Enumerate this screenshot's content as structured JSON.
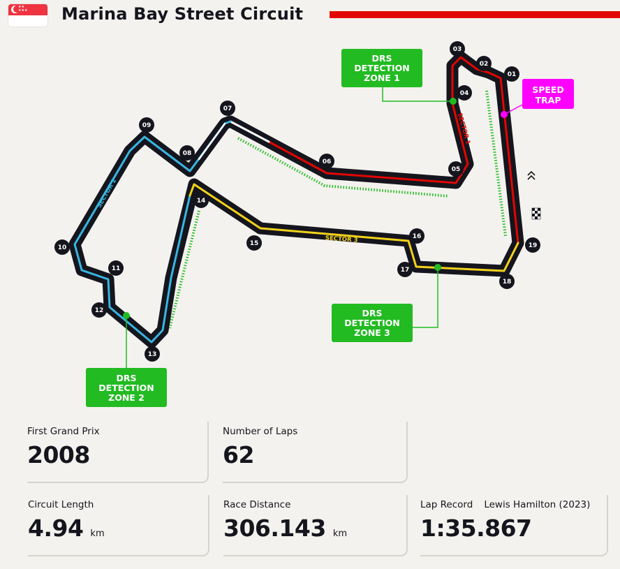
{
  "header": {
    "title": "Marina Bay Street Circuit",
    "flag_icon": "singapore-flag-icon",
    "accent_color": "#e10600"
  },
  "map": {
    "corners": [
      "01",
      "02",
      "03",
      "04",
      "05",
      "06",
      "07",
      "08",
      "09",
      "10",
      "11",
      "12",
      "13",
      "14",
      "15",
      "16",
      "17",
      "18",
      "19"
    ],
    "sectors": [
      {
        "name": "SECTOR 1",
        "color": "#e10600"
      },
      {
        "name": "SECTOR 2",
        "color": "#39b5e0"
      },
      {
        "name": "SECTOR 3",
        "color": "#f2d21b"
      }
    ],
    "drs_zones": [
      {
        "label_lines": [
          "DRS",
          "DETECTION",
          "ZONE 1"
        ]
      },
      {
        "label_lines": [
          "DRS",
          "DETECTION",
          "ZONE 2"
        ]
      },
      {
        "label_lines": [
          "DRS",
          "DETECTION",
          "ZONE 3"
        ]
      }
    ],
    "drs_color": "#22bb22",
    "speed_trap": {
      "label_lines": [
        "SPEED",
        "TRAP"
      ],
      "color": "#ff00ff"
    },
    "track_color": "#15151e",
    "start_finish_icon": "chequered-flag-icon",
    "direction_icon": "double-chevron-up-icon"
  },
  "stats": {
    "first_gp": {
      "label": "First Grand Prix",
      "value": "2008"
    },
    "laps": {
      "label": "Number of Laps",
      "value": "62"
    },
    "length": {
      "label": "Circuit Length",
      "value": "4.94",
      "unit": "km"
    },
    "distance": {
      "label": "Race Distance",
      "value": "306.143",
      "unit": "km"
    },
    "lap_record": {
      "label": "Lap Record",
      "holder": "Lewis Hamilton (2023)",
      "value": "1:35.867"
    }
  }
}
